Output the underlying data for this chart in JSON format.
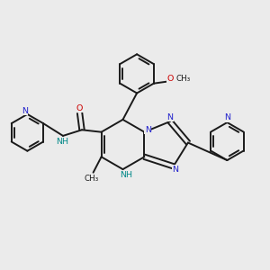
{
  "background_color": "#ebebeb",
  "bond_color": "#1a1a1a",
  "N_color": "#2222cc",
  "O_color": "#cc0000",
  "NH_color": "#008888",
  "figsize": [
    3.0,
    3.0
  ],
  "dpi": 100,
  "xlim": [
    0,
    10
  ],
  "ylim": [
    0,
    10
  ]
}
